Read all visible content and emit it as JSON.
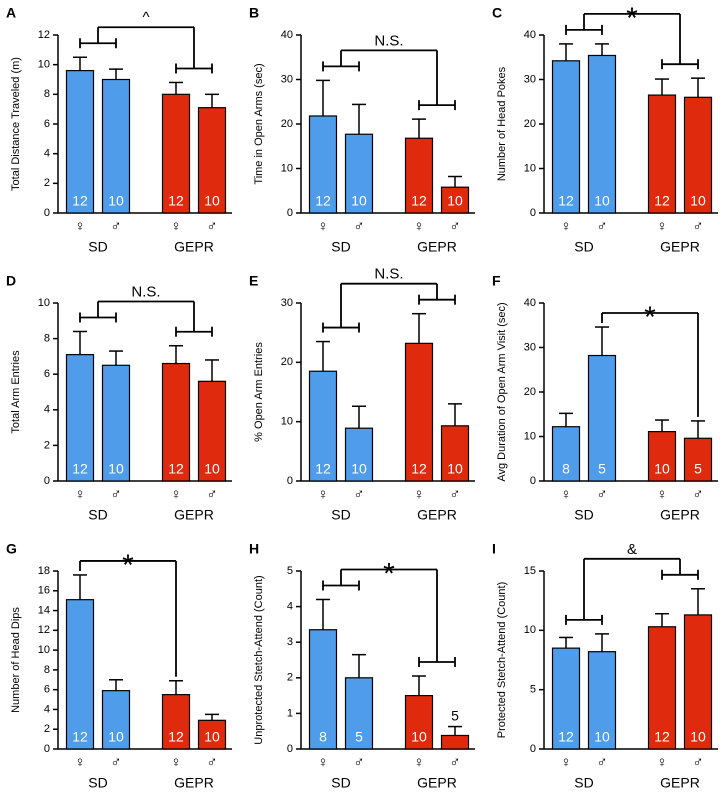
{
  "chart_data": [
    {
      "type": "bar",
      "panel": "A",
      "ylabel": "Total Distance Traveled (m)",
      "categories": [
        "♀",
        "♂",
        "♀",
        "♂"
      ],
      "groups": [
        "SD",
        "GEPR"
      ],
      "values": [
        9.6,
        9.0,
        8.0,
        7.1
      ],
      "errors": [
        0.9,
        0.7,
        0.8,
        0.9
      ],
      "n": [
        12,
        10,
        12,
        10
      ],
      "colors": [
        "#4f9cea",
        "#4f9cea",
        "#e02a0d",
        "#e02a0d"
      ],
      "ylim": [
        0,
        12
      ],
      "yticks": [
        0,
        2,
        4,
        6,
        8,
        10,
        12
      ],
      "annotation": "^",
      "bracket": "groups"
    },
    {
      "type": "bar",
      "panel": "B",
      "ylabel": "Time in Open Arms (sec)",
      "categories": [
        "♀",
        "♂",
        "♀",
        "♂"
      ],
      "groups": [
        "SD",
        "GEPR"
      ],
      "values": [
        21.8,
        17.7,
        16.8,
        5.8
      ],
      "errors": [
        8.0,
        6.7,
        4.3,
        2.4
      ],
      "n": [
        12,
        10,
        12,
        10
      ],
      "colors": [
        "#4f9cea",
        "#4f9cea",
        "#e02a0d",
        "#e02a0d"
      ],
      "ylim": [
        0,
        40
      ],
      "yticks": [
        0,
        10,
        20,
        30,
        40
      ],
      "annotation": "N.S.",
      "bracket": "groups"
    },
    {
      "type": "bar",
      "panel": "C",
      "ylabel": "Number of Head Pokes",
      "categories": [
        "♀",
        "♂",
        "♀",
        "♂"
      ],
      "groups": [
        "SD",
        "GEPR"
      ],
      "values": [
        34.2,
        35.4,
        26.5,
        26.0
      ],
      "errors": [
        3.8,
        2.6,
        3.6,
        4.3
      ],
      "n": [
        12,
        10,
        12,
        10
      ],
      "colors": [
        "#4f9cea",
        "#4f9cea",
        "#e02a0d",
        "#e02a0d"
      ],
      "ylim": [
        0,
        40
      ],
      "yticks": [
        0,
        10,
        20,
        30,
        40
      ],
      "annotation": "*",
      "bracket": "groups"
    },
    {
      "type": "bar",
      "panel": "D",
      "ylabel": "Total Arm Entries",
      "categories": [
        "♀",
        "♂",
        "♀",
        "♂"
      ],
      "groups": [
        "SD",
        "GEPR"
      ],
      "values": [
        7.1,
        6.5,
        6.6,
        5.6
      ],
      "errors": [
        1.3,
        0.8,
        1.0,
        1.2
      ],
      "n": [
        12,
        10,
        12,
        10
      ],
      "colors": [
        "#4f9cea",
        "#4f9cea",
        "#e02a0d",
        "#e02a0d"
      ],
      "ylim": [
        0,
        10
      ],
      "yticks": [
        0,
        2,
        4,
        6,
        8,
        10
      ],
      "annotation": "N.S.",
      "bracket": "groups"
    },
    {
      "type": "bar",
      "panel": "E",
      "ylabel": "% Open Arm Entries",
      "categories": [
        "♀",
        "♂",
        "♀",
        "♂"
      ],
      "groups": [
        "SD",
        "GEPR"
      ],
      "values": [
        18.5,
        8.9,
        23.2,
        9.3
      ],
      "errors": [
        5.0,
        3.7,
        5.0,
        3.7
      ],
      "n": [
        12,
        10,
        12,
        10
      ],
      "colors": [
        "#4f9cea",
        "#4f9cea",
        "#e02a0d",
        "#e02a0d"
      ],
      "ylim": [
        0,
        30
      ],
      "yticks": [
        0,
        10,
        20,
        30
      ],
      "annotation": "N.S.",
      "bracket": "groups"
    },
    {
      "type": "bar",
      "panel": "F",
      "ylabel": "Avg Duration of Open Arm Visit (sec)",
      "categories": [
        "♀",
        "♂",
        "♀",
        "♂"
      ],
      "groups": [
        "SD",
        "GEPR"
      ],
      "values": [
        12.2,
        28.2,
        11.1,
        9.6
      ],
      "errors": [
        3.0,
        6.4,
        2.6,
        3.9
      ],
      "n": [
        8,
        5,
        10,
        5
      ],
      "colors": [
        "#4f9cea",
        "#4f9cea",
        "#e02a0d",
        "#e02a0d"
      ],
      "ylim": [
        0,
        40
      ],
      "yticks": [
        0,
        10,
        20,
        30,
        40
      ],
      "annotation": "*",
      "bracket": [
        1,
        3
      ]
    },
    {
      "type": "bar",
      "panel": "G",
      "ylabel": "Number of Head Dips",
      "categories": [
        "♀",
        "♂",
        "♀",
        "♂"
      ],
      "groups": [
        "SD",
        "GEPR"
      ],
      "values": [
        15.1,
        5.9,
        5.5,
        2.9
      ],
      "errors": [
        2.5,
        1.1,
        1.4,
        0.6
      ],
      "n": [
        12,
        10,
        12,
        10
      ],
      "colors": [
        "#4f9cea",
        "#4f9cea",
        "#e02a0d",
        "#e02a0d"
      ],
      "ylim": [
        0,
        18
      ],
      "yticks": [
        0,
        2,
        4,
        6,
        8,
        10,
        12,
        14,
        16,
        18
      ],
      "annotation": "*",
      "bracket": [
        0,
        2
      ]
    },
    {
      "type": "bar",
      "panel": "H",
      "ylabel": "Unprotected Stetch-Attend (Count)",
      "categories": [
        "♀",
        "♂",
        "♀",
        "♂"
      ],
      "groups": [
        "SD",
        "GEPR"
      ],
      "values": [
        3.35,
        2.0,
        1.5,
        0.38
      ],
      "errors": [
        0.85,
        0.65,
        0.55,
        0.25
      ],
      "n": [
        8,
        5,
        10,
        5
      ],
      "colors": [
        "#4f9cea",
        "#4f9cea",
        "#e02a0d",
        "#e02a0d"
      ],
      "ylim": [
        0,
        5
      ],
      "yticks": [
        0,
        1,
        2,
        3,
        4,
        5
      ],
      "annotation": "*",
      "bracket": "groups"
    },
    {
      "type": "bar",
      "panel": "I",
      "ylabel": "Protected Stetch-Attend (Count)",
      "categories": [
        "♀",
        "♂",
        "♀",
        "♂"
      ],
      "groups": [
        "SD",
        "GEPR"
      ],
      "values": [
        8.5,
        8.2,
        10.3,
        11.3
      ],
      "errors": [
        0.9,
        1.5,
        1.1,
        2.2
      ],
      "n": [
        12,
        10,
        12,
        10
      ],
      "colors": [
        "#4f9cea",
        "#4f9cea",
        "#e02a0d",
        "#e02a0d"
      ],
      "ylim": [
        0,
        15
      ],
      "yticks": [
        0,
        5,
        10,
        15
      ],
      "annotation": "&",
      "bracket": "groups"
    }
  ]
}
